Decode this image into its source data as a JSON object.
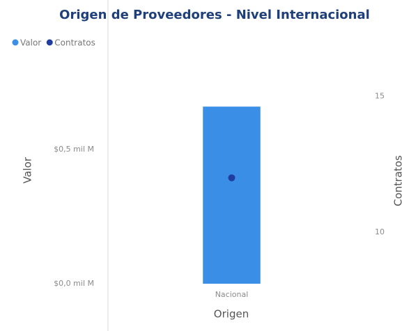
{
  "chart_data": {
    "type": "combo",
    "title": "Origen de Proveedores - Nivel Internacional",
    "x_label": "Origen",
    "y_label": "Valor",
    "y2_label": "Contratos",
    "categories": [
      "Nacional"
    ],
    "series": [
      {
        "name": "Valor",
        "type": "bar",
        "color": "#3a8ee6",
        "values": [
          0.66
        ]
      },
      {
        "name": "Contratos",
        "type": "scatter",
        "color": "#1f3da0",
        "axis": "y2",
        "values": [
          12
        ]
      }
    ],
    "ylim": [
      0,
      0.85
    ],
    "yticks": [
      {
        "value": 0,
        "label": "$0,0 mil M"
      },
      {
        "value": 0.5,
        "label": "$0,5 mil M"
      }
    ],
    "y2lim": [
      8.1,
      16.5
    ],
    "y2ticks": [
      10,
      15
    ],
    "grid": false,
    "legend": "top-left"
  }
}
